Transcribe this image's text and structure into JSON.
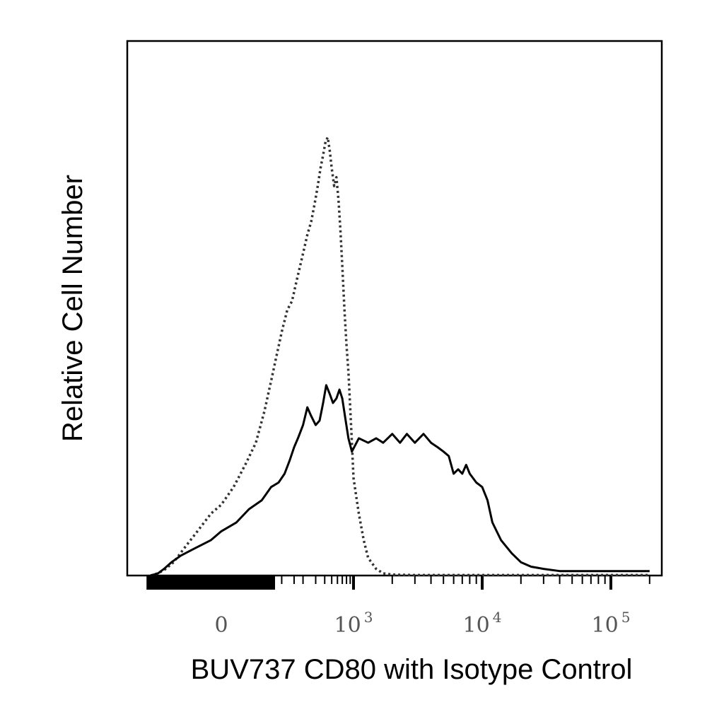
{
  "chart_data": {
    "type": "line",
    "title": "",
    "xlabel": "BUV737 CD80 with Isotype Control",
    "ylabel": "Relative Cell Number",
    "x_scale": "biexponential (log beyond 10^3)",
    "xlim": [
      -200,
      200000
    ],
    "ylim": [
      0,
      100
    ],
    "x_ticks": [
      {
        "value": 0,
        "base": "0",
        "exp": ""
      },
      {
        "value": 1000,
        "base": "10",
        "exp": "3"
      },
      {
        "value": 10000,
        "base": "10",
        "exp": "4"
      },
      {
        "value": 100000,
        "base": "10",
        "exp": "5"
      }
    ],
    "series": [
      {
        "style": "dotted",
        "color": "#333333",
        "x": [
          -140,
          -110,
          -85,
          -65,
          -45,
          -25,
          -10,
          0,
          12,
          25,
          40,
          55,
          70,
          85,
          100,
          120,
          140,
          165,
          195,
          230,
          260,
          290,
          320,
          350,
          380,
          410,
          440,
          470,
          500,
          540,
          580,
          620,
          660,
          700,
          750,
          800,
          850,
          900,
          950,
          1000,
          1100,
          1200,
          1300,
          1500,
          1700,
          2000,
          3000,
          5000,
          10000,
          30000,
          100000,
          200000
        ],
        "y": [
          0,
          0.5,
          1.5,
          3,
          6,
          10,
          14,
          16,
          20,
          25,
          30,
          37,
          44,
          50,
          55,
          60,
          62,
          67,
          72,
          77,
          80,
          84,
          88,
          92,
          95,
          98,
          99,
          96,
          92,
          88,
          90,
          85,
          78,
          70,
          60,
          52,
          46,
          38,
          30,
          22,
          14,
          8,
          4,
          1.5,
          0.5,
          0.2,
          0.1,
          0.1,
          0.1,
          0.1,
          0.1,
          0.1
        ]
      },
      {
        "style": "solid",
        "color": "#000000",
        "x": [
          -140,
          -110,
          -90,
          -70,
          -50,
          -30,
          -10,
          0,
          15,
          30,
          50,
          70,
          90,
          110,
          130,
          150,
          170,
          200,
          230,
          260,
          300,
          340,
          380,
          420,
          470,
          520,
          580,
          640,
          700,
          780,
          850,
          950,
          1100,
          1300,
          1500,
          1700,
          2000,
          2300,
          2600,
          3000,
          3500,
          4000,
          4500,
          5000,
          5500,
          6000,
          6500,
          7000,
          7500,
          8000,
          9000,
          10000,
          11000,
          12000,
          14000,
          17000,
          20000,
          24000,
          30000,
          40000,
          60000,
          80000,
          100000,
          150000,
          200000
        ],
        "y": [
          0,
          0.5,
          1.5,
          3,
          4.5,
          6,
          8,
          10,
          12,
          15,
          17,
          20,
          21,
          23,
          26,
          29,
          31,
          34,
          38,
          36,
          34,
          35,
          39,
          43,
          41,
          39,
          40,
          42,
          40,
          35,
          31,
          28,
          31,
          30,
          31,
          30,
          32,
          30,
          32,
          30,
          32,
          30,
          29,
          28,
          27,
          23,
          24,
          23,
          25,
          23,
          21,
          20,
          17,
          12,
          8,
          5,
          3,
          2,
          1.5,
          1,
          1,
          1,
          1,
          1,
          1
        ]
      }
    ]
  }
}
